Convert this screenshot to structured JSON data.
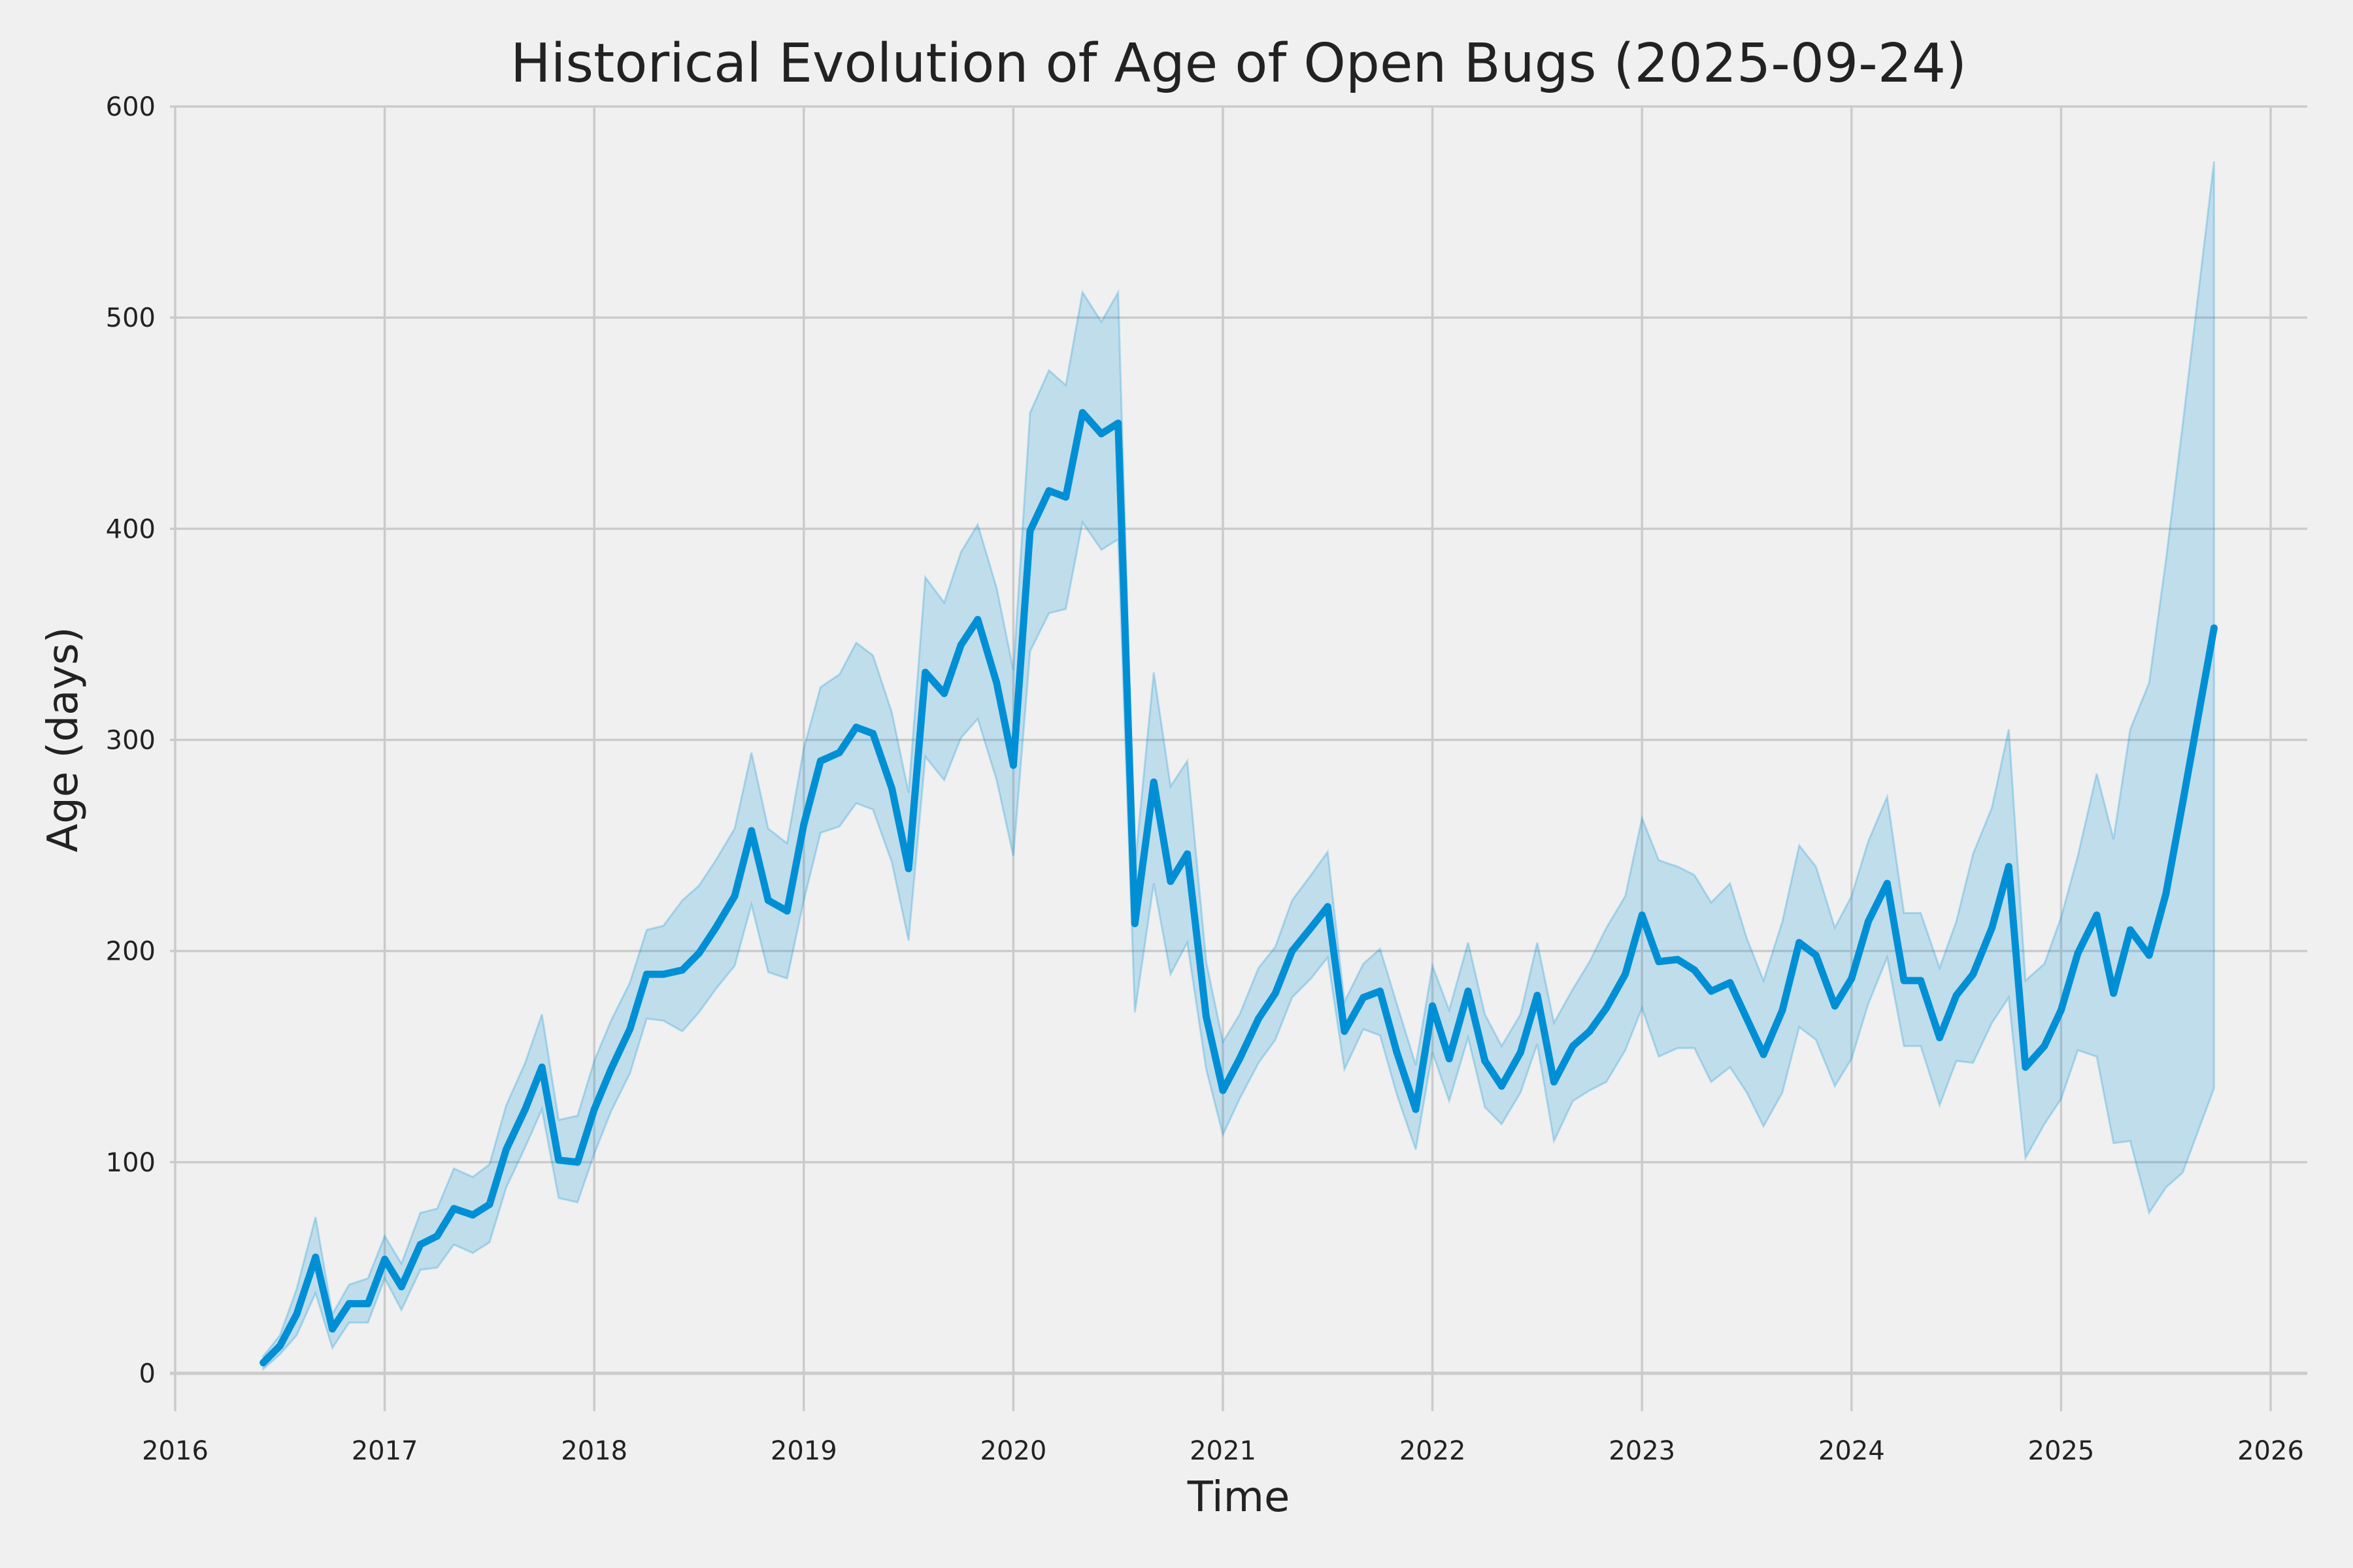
{
  "chart_data": {
    "type": "line",
    "title": "Historical Evolution of Age of Open Bugs (2025-09-24)",
    "xlabel": "Time",
    "ylabel": "Age (days)",
    "xlim": [
      2016,
      2026.2
    ],
    "ylim": [
      -25,
      600
    ],
    "grid": true,
    "x_ticks": [
      "2016",
      "2017",
      "2018",
      "2019",
      "2020",
      "2021",
      "2022",
      "2023",
      "2024",
      "2025",
      "2026"
    ],
    "y_ticks": [
      "0",
      "100",
      "200",
      "300",
      "400",
      "500",
      "600"
    ],
    "colors": {
      "line": "#008fd5",
      "band": "#008fd5",
      "background": "#f0f0f0",
      "grid": "#cbcbcb",
      "text": "#222222"
    },
    "start": "2016-06",
    "x": [
      2016.42,
      2016.5,
      2016.58,
      2016.67,
      2016.75,
      2016.83,
      2016.92,
      2017.0,
      2017.08,
      2017.17,
      2017.25,
      2017.33,
      2017.42,
      2017.5,
      2017.58,
      2017.67,
      2017.75,
      2017.83,
      2017.92,
      2018.0,
      2018.08,
      2018.17,
      2018.25,
      2018.33,
      2018.42,
      2018.5,
      2018.58,
      2018.67,
      2018.75,
      2018.83,
      2018.92,
      2019.0,
      2019.08,
      2019.17,
      2019.25,
      2019.33,
      2019.42,
      2019.5,
      2019.58,
      2019.67,
      2019.75,
      2019.83,
      2019.92,
      2020.0,
      2020.08,
      2020.17,
      2020.25,
      2020.33,
      2020.42,
      2020.5,
      2020.58,
      2020.67,
      2020.75,
      2020.83,
      2020.92,
      2021.0,
      2021.08,
      2021.17,
      2021.25,
      2021.33,
      2021.42,
      2021.5,
      2021.58,
      2021.67,
      2021.75,
      2021.83,
      2021.92,
      2022.0,
      2022.08,
      2022.17,
      2022.25,
      2022.33,
      2022.42,
      2022.5,
      2022.58,
      2022.67,
      2022.75,
      2022.83,
      2022.92,
      2023.0,
      2023.08,
      2023.17,
      2023.25,
      2023.33,
      2023.42,
      2023.5,
      2023.58,
      2023.67,
      2023.75,
      2023.83,
      2023.92,
      2024.0,
      2024.08,
      2024.17,
      2024.25,
      2024.33,
      2024.42,
      2024.5,
      2024.58,
      2024.67,
      2024.75,
      2024.83,
      2024.92,
      2025.0,
      2025.08,
      2025.17,
      2025.25,
      2025.33,
      2025.42,
      2025.5,
      2025.58,
      2025.73
    ],
    "series": [
      {
        "name": "mean",
        "values": [
          5,
          13,
          28,
          55,
          21,
          33,
          33,
          54,
          41,
          61,
          65,
          78,
          75,
          80,
          106,
          125,
          145,
          101,
          100,
          125,
          144,
          163,
          189,
          189,
          191,
          199,
          211,
          226,
          257,
          224,
          219,
          260,
          290,
          294,
          306,
          303,
          277,
          239,
          332,
          322,
          345,
          357,
          327,
          288,
          399,
          418,
          415,
          455,
          445,
          450,
          213,
          280,
          233,
          246,
          169,
          134,
          149,
          168,
          180,
          200,
          211,
          221,
          162,
          178,
          181,
          152,
          125,
          174,
          149,
          181,
          148,
          136,
          152,
          179,
          138,
          155,
          162,
          173,
          189,
          217,
          195,
          196,
          191,
          181,
          185,
          168,
          151,
          172,
          204,
          198,
          174,
          187,
          214,
          232,
          186,
          186,
          159,
          179,
          189,
          211,
          240,
          145,
          155,
          172,
          199,
          217,
          180,
          210,
          198,
          227,
          270,
          353
        ]
      },
      {
        "name": "upper",
        "values": [
          8,
          18,
          40,
          74,
          28,
          42,
          45,
          65,
          52,
          76,
          78,
          97,
          93,
          99,
          127,
          147,
          170,
          120,
          122,
          148,
          167,
          185,
          210,
          212,
          224,
          231,
          243,
          258,
          294,
          258,
          251,
          296,
          325,
          331,
          346,
          340,
          313,
          275,
          377,
          365,
          389,
          402,
          372,
          333,
          455,
          475,
          468,
          512,
          498,
          512,
          240,
          332,
          278,
          290,
          195,
          157,
          170,
          192,
          202,
          224,
          236,
          247,
          176,
          194,
          201,
          175,
          146,
          193,
          172,
          204,
          170,
          155,
          170,
          204,
          166,
          182,
          195,
          211,
          226,
          263,
          243,
          240,
          236,
          223,
          232,
          206,
          186,
          214,
          250,
          240,
          211,
          226,
          252,
          273,
          218,
          218,
          192,
          214,
          246,
          268,
          305,
          186,
          194,
          216,
          245,
          284,
          253,
          305,
          327,
          385,
          449,
          574
        ]
      },
      {
        "name": "lower",
        "values": [
          2,
          9,
          18,
          38,
          12,
          24,
          24,
          45,
          30,
          49,
          50,
          61,
          57,
          62,
          88,
          107,
          125,
          83,
          81,
          104,
          124,
          142,
          168,
          167,
          162,
          171,
          182,
          193,
          222,
          190,
          187,
          224,
          256,
          259,
          270,
          267,
          242,
          205,
          292,
          281,
          301,
          310,
          281,
          245,
          342,
          360,
          362,
          403,
          390,
          395,
          171,
          232,
          189,
          204,
          144,
          113,
          130,
          147,
          158,
          178,
          187,
          197,
          144,
          163,
          160,
          132,
          106,
          152,
          129,
          159,
          126,
          118,
          133,
          156,
          110,
          129,
          134,
          138,
          153,
          173,
          150,
          154,
          154,
          138,
          145,
          133,
          117,
          133,
          164,
          158,
          136,
          149,
          175,
          197,
          155,
          155,
          127,
          148,
          147,
          166,
          178,
          102,
          118,
          130,
          153,
          150,
          109,
          110,
          76,
          88,
          95,
          135
        ]
      }
    ]
  }
}
